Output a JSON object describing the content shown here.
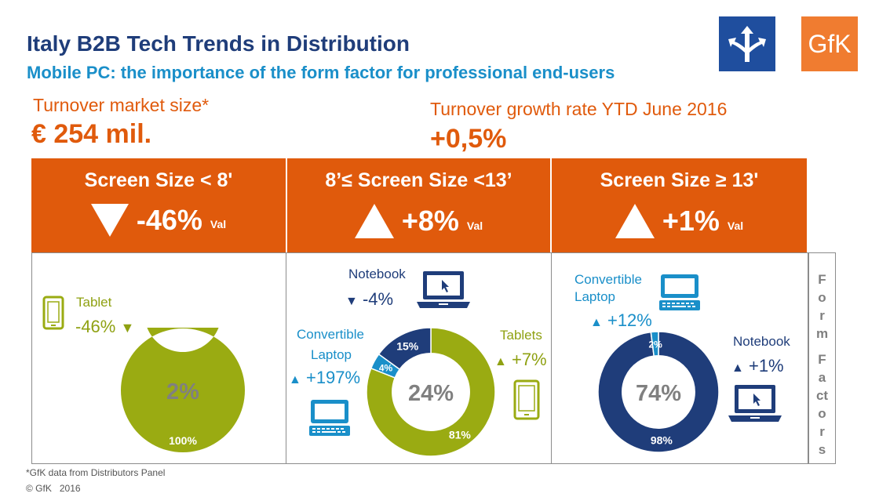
{
  "header": {
    "title": "Italy B2B Tech Trends in Distribution",
    "subtitle": "Mobile PC: the importance of the form factor for professional end-users"
  },
  "kpis": {
    "market_size_label": "Turnover market size*",
    "market_size_value": "€ 254 mil.",
    "growth_label": "Turnover growth rate YTD June 2016",
    "growth_value": "+0,5%"
  },
  "segments": [
    {
      "title": "Screen Size < 8'",
      "change": "-46%",
      "unit": "Val",
      "direction": "down",
      "share": "2%"
    },
    {
      "title": "8’≤ Screen Size <13’",
      "change": "+8%",
      "unit": "Val",
      "direction": "up",
      "share": "24%"
    },
    {
      "title": "Screen Size ≥ 13'",
      "change": "+1%",
      "unit": "Val",
      "direction": "up",
      "share": "74%"
    }
  ],
  "labels": {
    "seg1_tablet": "Tablet",
    "seg1_tablet_change": "-46%",
    "seg2_notebook": "Notebook",
    "seg2_notebook_change": "-4%",
    "seg2_convertible_1": "Convertible",
    "seg2_convertible_2": "Laptop",
    "seg2_convertible_change": "+197%",
    "seg2_tablets": "Tablets",
    "seg2_tablets_change": "+7%",
    "seg3_convertible_1": "Convertible",
    "seg3_convertible_2": "Laptop",
    "seg3_convertible_change": "+12%",
    "seg3_notebook": "Notebook",
    "seg3_notebook_change": "+1%"
  },
  "side_label": {
    "line1": "Form",
    "line2": "Factors"
  },
  "footer": {
    "note": "*GfK data from Distributors Panel",
    "copyright": "© GfK   2016"
  },
  "logos": {
    "gfk": "GfK"
  },
  "colors": {
    "orange": "#e05a0c",
    "olive": "#9aab12",
    "navy": "#1f3d7a",
    "blue": "#1a8fc9",
    "grey": "#808080"
  },
  "chart_data": [
    {
      "type": "pie",
      "donut": true,
      "center_label": "2%",
      "slices": [
        {
          "label": "Tablet",
          "value": 100,
          "display": "100%",
          "color": "#9aab12"
        }
      ]
    },
    {
      "type": "pie",
      "donut": true,
      "center_label": "24%",
      "slices": [
        {
          "label": "Tablets",
          "value": 81,
          "display": "81%",
          "color": "#9aab12"
        },
        {
          "label": "Convertible Laptop",
          "value": 4,
          "display": "4%",
          "color": "#1a8fc9"
        },
        {
          "label": "Notebook",
          "value": 15,
          "display": "15%",
          "color": "#1f3d7a"
        }
      ]
    },
    {
      "type": "pie",
      "donut": true,
      "center_label": "74%",
      "slices": [
        {
          "label": "Notebook",
          "value": 98,
          "display": "98%",
          "color": "#1f3d7a"
        },
        {
          "label": "Convertible Laptop",
          "value": 2,
          "display": "2%",
          "color": "#1a8fc9"
        }
      ]
    }
  ]
}
